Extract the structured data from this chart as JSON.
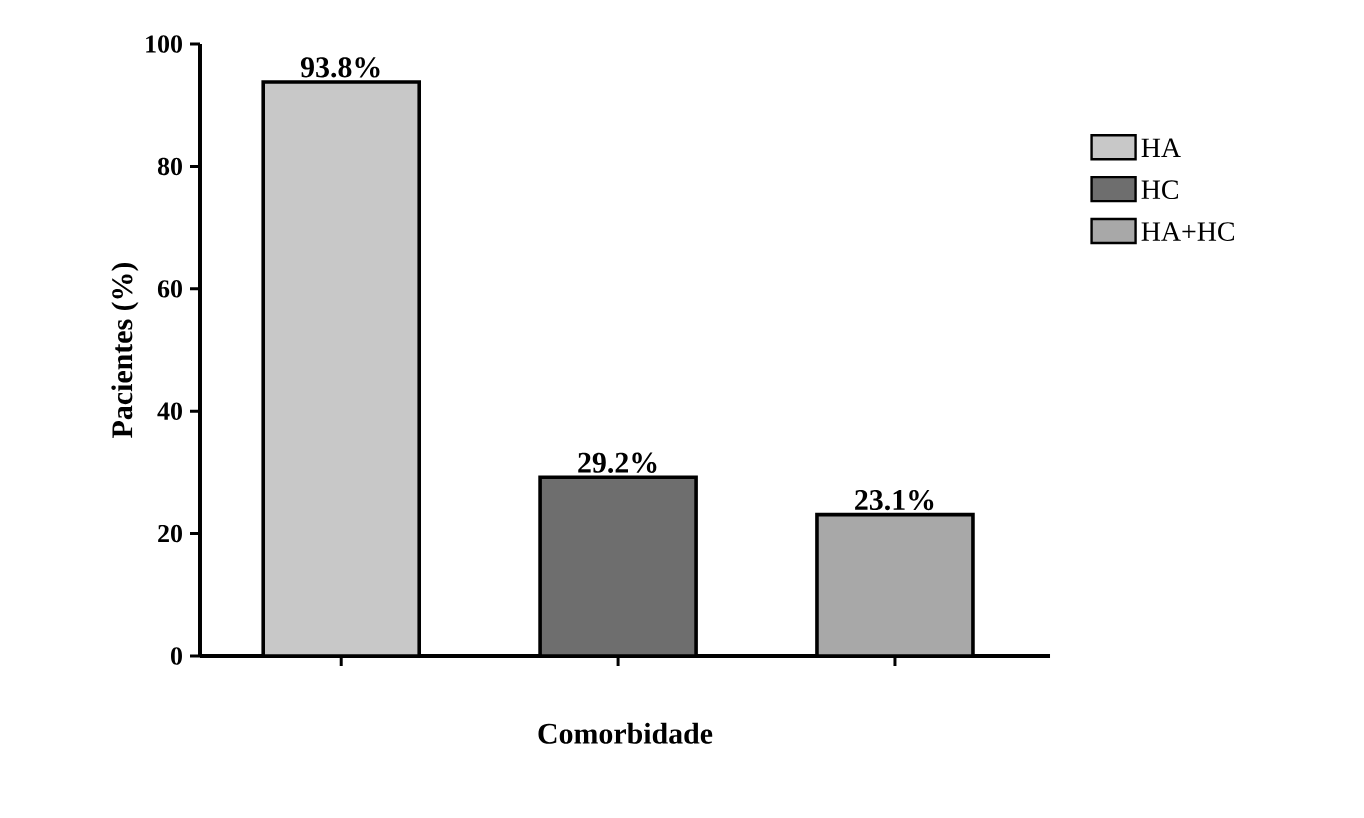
{
  "chart_data": {
    "type": "bar",
    "xlabel": "Comorbidade",
    "ylabel": "Pacientes (%)",
    "categories": [
      null,
      null,
      null
    ],
    "series": [
      {
        "name": "HA",
        "color": "#c8c8c8",
        "values": [
          93.8,
          null,
          null
        ],
        "value_labels": [
          "93.8%",
          null,
          null
        ]
      },
      {
        "name": "HC",
        "color": "#6e6e6e",
        "values": [
          null,
          29.2,
          null
        ],
        "value_labels": [
          null,
          "29.2%",
          null
        ]
      },
      {
        "name": "HA+HC",
        "color": "#a8a8a8",
        "values": [
          null,
          null,
          23.1
        ],
        "value_labels": [
          null,
          null,
          "23.1%"
        ]
      }
    ],
    "ylim": [
      0,
      100
    ],
    "yticks": [
      0,
      20,
      40,
      60,
      80,
      100
    ],
    "grid": false,
    "legend": "right"
  }
}
